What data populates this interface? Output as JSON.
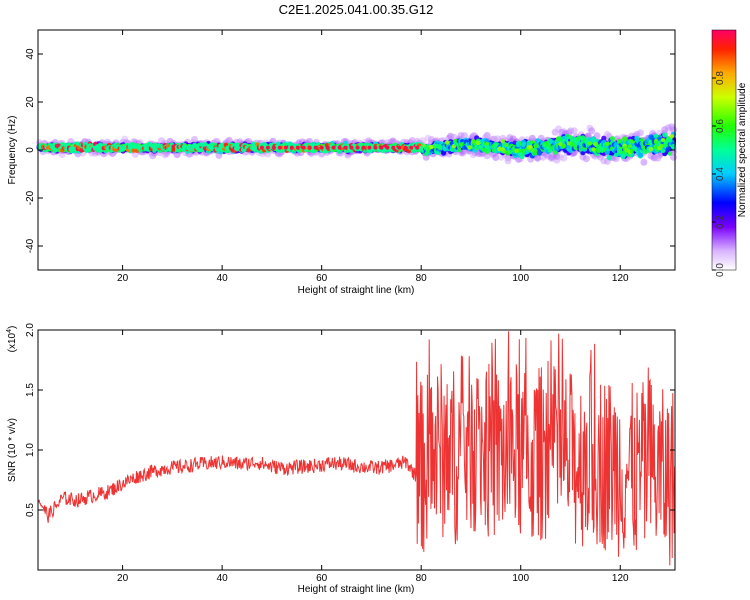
{
  "title": "C2E1.2025.041.00.35.G12",
  "colorbar": {
    "label": "Normalized spectral amplitude",
    "ticks": [
      "0.0",
      "0.2",
      "0.4",
      "0.6",
      "0.8"
    ],
    "tick_values": [
      0.0,
      0.2,
      0.4,
      0.6,
      0.8
    ],
    "range": [
      0,
      1
    ]
  },
  "chart_data": [
    {
      "type": "scatter",
      "description_key": "spectrogram",
      "xlabel": "Height of straight line (km)",
      "ylabel": "Frequency (Hz)",
      "xlim": [
        3,
        131
      ],
      "ylim": [
        -50,
        50
      ],
      "x_ticks": [
        20,
        40,
        60,
        80,
        100,
        120
      ],
      "y_ticks": [
        -40,
        -20,
        0,
        20,
        40
      ],
      "segments": [
        {
          "x_range": [
            3,
            80
          ],
          "center_freq": 1.0,
          "spread": 3,
          "amplitude": "high"
        },
        {
          "x_range": [
            80,
            131
          ],
          "center_freq": 1.0,
          "spread": 8,
          "amplitude": "mixed"
        }
      ]
    },
    {
      "type": "line",
      "xlabel": "Height of straight line (km)",
      "ylabel": "SNR (10 * v/v)",
      "y_multiplier": "(x10",
      "y_multiplier_exp": "4",
      "y_multiplier_close": ")",
      "xlim": [
        3,
        131
      ],
      "ylim": [
        0,
        2.0
      ],
      "x_ticks": [
        20,
        40,
        60,
        80,
        100,
        120
      ],
      "y_ticks": [
        0.5,
        1.0,
        1.5,
        2.0
      ],
      "y_tick_labels": [
        "0.5",
        "1.0",
        "1.5",
        "2.0"
      ],
      "color": "#ee3333",
      "series": [
        {
          "x": [
            3,
            5,
            8,
            11,
            14,
            17,
            20,
            23,
            26,
            29,
            32,
            35,
            38,
            41,
            44,
            47,
            50,
            53,
            56,
            59,
            62,
            65,
            68,
            71,
            74,
            77,
            79,
            81,
            84,
            87,
            90,
            93,
            96,
            99,
            102,
            105,
            108,
            111,
            114,
            117,
            120,
            123,
            126,
            129,
            131
          ],
          "y": [
            0.6,
            0.45,
            0.6,
            0.58,
            0.62,
            0.65,
            0.72,
            0.78,
            0.82,
            0.85,
            0.86,
            0.88,
            0.89,
            0.9,
            0.88,
            0.9,
            0.86,
            0.85,
            0.86,
            0.87,
            0.89,
            0.88,
            0.86,
            0.85,
            0.87,
            0.9,
            0.78,
            0.9,
            1.0,
            0.95,
            1.05,
            1.0,
            0.95,
            1.0,
            0.9,
            1.0,
            0.95,
            0.9,
            0.95,
            0.9,
            0.85,
            0.8,
            0.85,
            0.75,
            0.8
          ]
        }
      ]
    }
  ]
}
